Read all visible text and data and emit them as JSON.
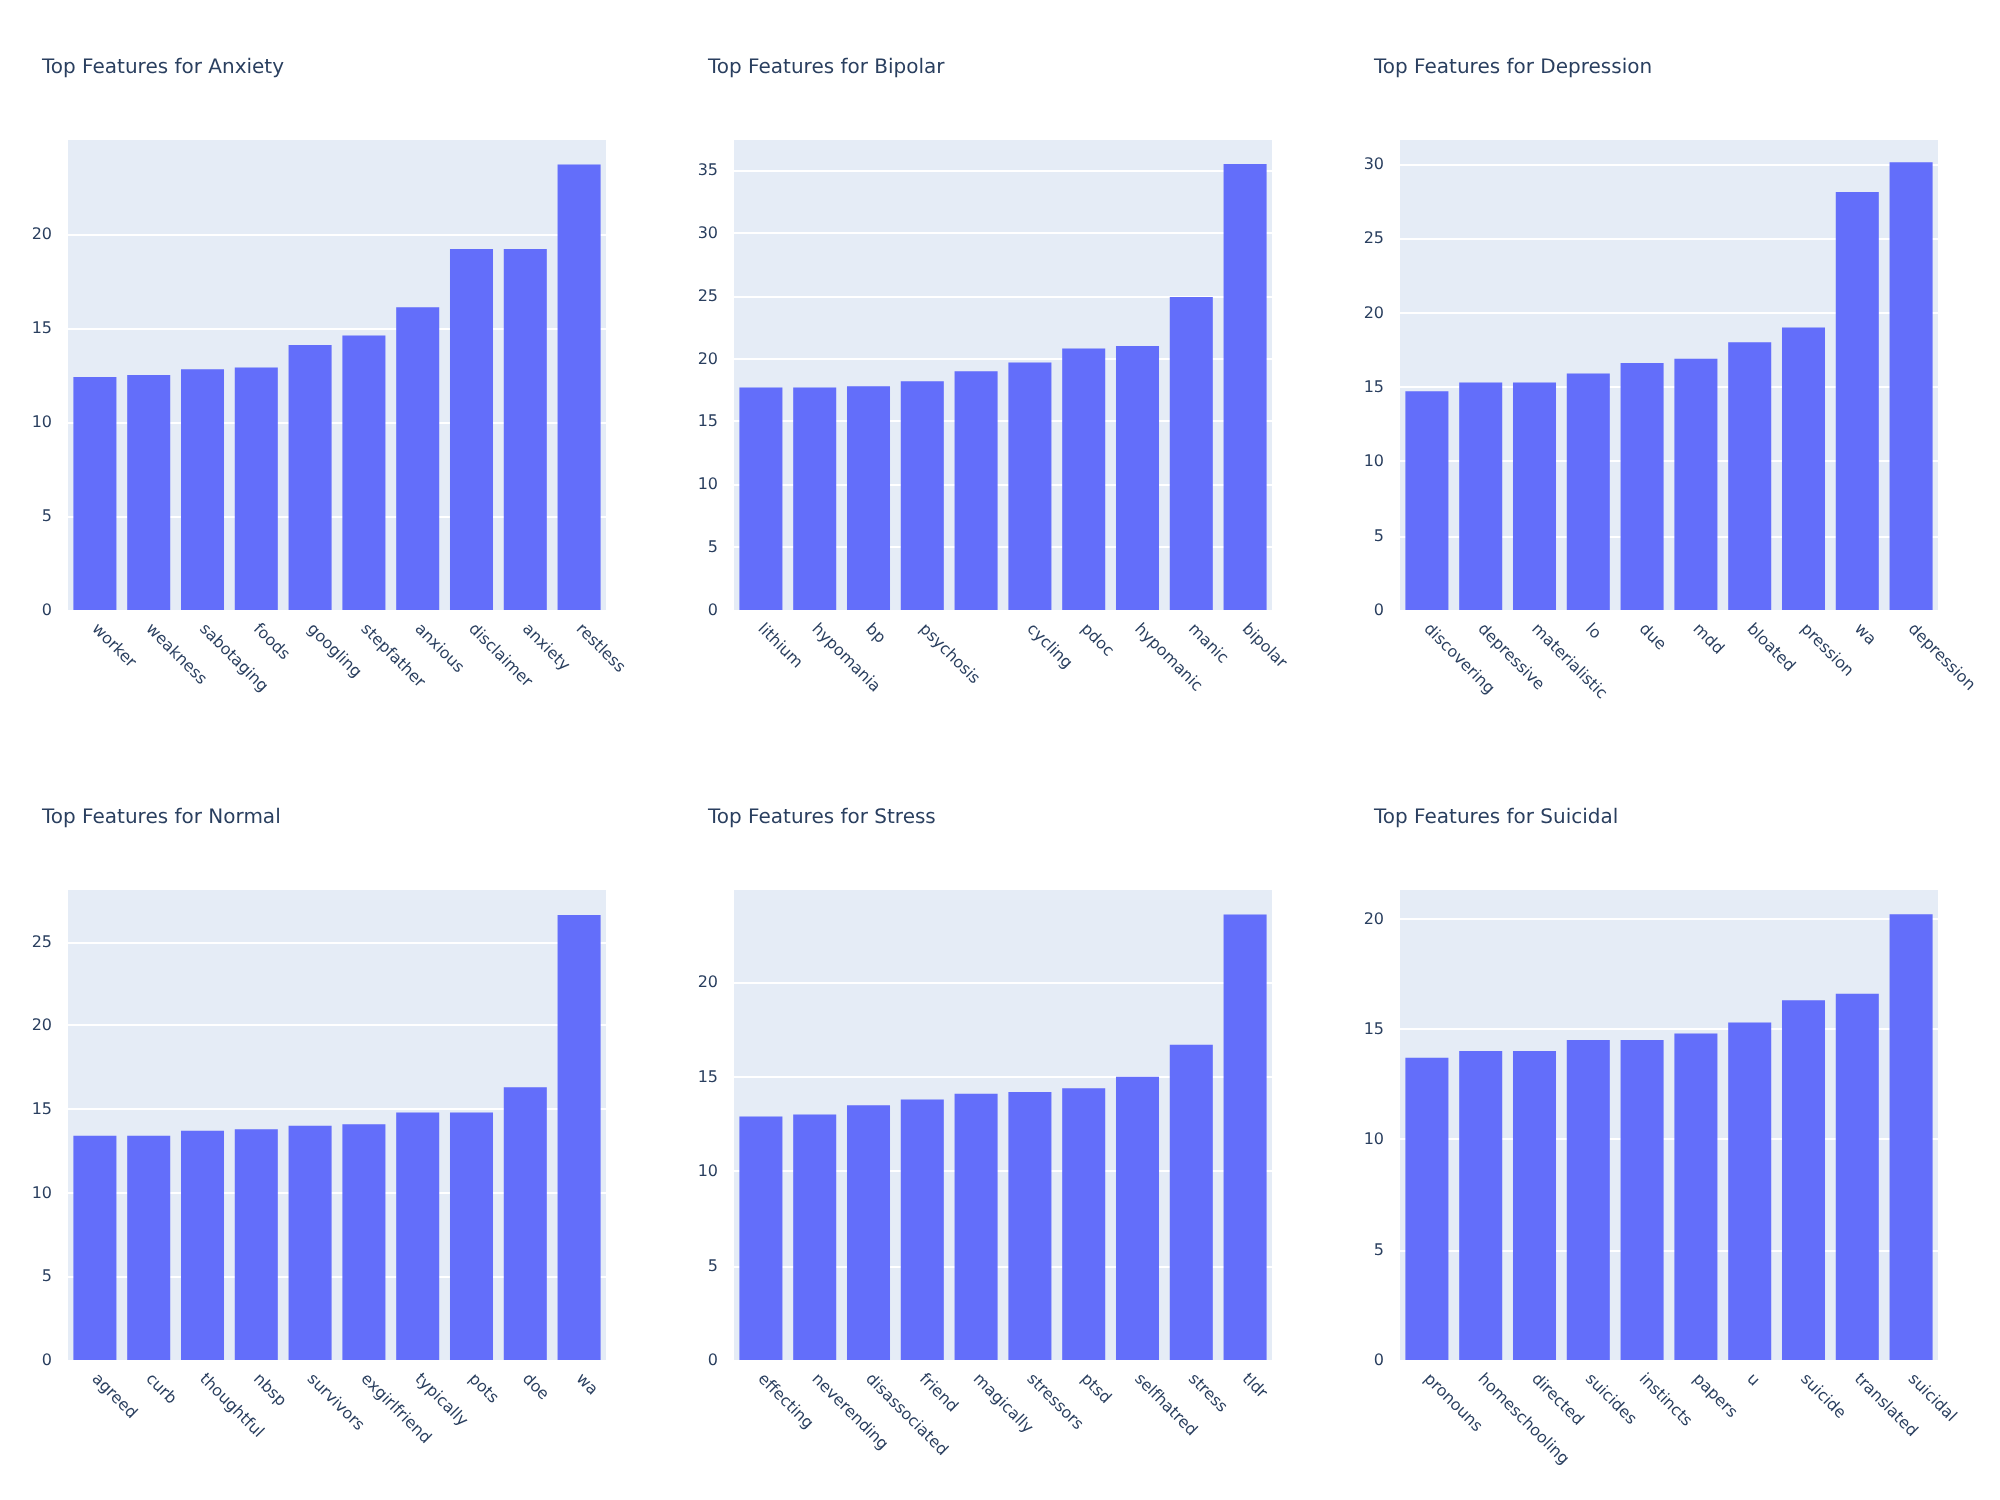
{
  "chart_data": [
    {
      "type": "bar",
      "title": "Top Features for Anxiety",
      "categories": [
        "worker",
        "weakness",
        "sabotaging",
        "foods",
        "googling",
        "stepfather",
        "anxious",
        "disclaimer",
        "anxiety",
        "restless"
      ],
      "values": [
        12.4,
        12.5,
        12.8,
        12.9,
        14.1,
        14.6,
        16.1,
        19.2,
        19.2,
        23.7
      ],
      "color": "#636efa",
      "ylim": [
        0,
        25
      ],
      "yticks": [
        0,
        5,
        10,
        15,
        20
      ],
      "grid": "y"
    },
    {
      "type": "bar",
      "title": "Top Features for Bipolar",
      "categories": [
        "lithium",
        "hypomania",
        "bp",
        "psychosis",
        null,
        "cycling",
        "pdoc",
        "hypomanic",
        "manic",
        "bipolar"
      ],
      "values": [
        17.7,
        17.7,
        17.8,
        18.2,
        19.0,
        19.7,
        20.8,
        21.0,
        24.9,
        35.5
      ],
      "color": "#636efa",
      "ylim": [
        0,
        37.4
      ],
      "yticks": [
        0,
        5,
        10,
        15,
        20,
        25,
        30,
        35
      ],
      "grid": "y"
    },
    {
      "type": "bar",
      "title": "Top Features for Depression",
      "categories": [
        "discovering",
        "depressive",
        "materialistic",
        "lo",
        "due",
        "mdd",
        "bloated",
        "pression",
        "wa",
        "depression"
      ],
      "values": [
        14.7,
        15.3,
        15.3,
        15.9,
        16.6,
        16.9,
        18.0,
        19.0,
        28.1,
        30.1
      ],
      "color": "#636efa",
      "ylim": [
        0,
        31.6
      ],
      "yticks": [
        0,
        5,
        10,
        15,
        20,
        25,
        30
      ],
      "grid": "y"
    },
    {
      "type": "bar",
      "title": "Top Features for Normal",
      "categories": [
        "agreed",
        "curb",
        "thoughtful",
        "nbsp",
        "survivors",
        "exgirlfriend",
        "typically",
        "pots",
        "doe",
        "wa"
      ],
      "values": [
        13.4,
        13.4,
        13.7,
        13.8,
        14.0,
        14.1,
        14.8,
        14.8,
        16.3,
        26.6
      ],
      "color": "#636efa",
      "ylim": [
        0,
        28.1
      ],
      "yticks": [
        0,
        5,
        10,
        15,
        20,
        25
      ],
      "grid": "y"
    },
    {
      "type": "bar",
      "title": "Top Features for Stress",
      "categories": [
        "effecting",
        "neverending",
        "disassociated",
        "friend",
        "magically",
        "stressors",
        "ptsd",
        "selfhatred",
        "stress",
        "tldr"
      ],
      "values": [
        12.9,
        13.0,
        13.5,
        13.8,
        14.1,
        14.2,
        14.4,
        15.0,
        16.7,
        23.6
      ],
      "color": "#636efa",
      "ylim": [
        0,
        24.9
      ],
      "yticks": [
        0,
        5,
        10,
        15,
        20
      ],
      "grid": "y"
    },
    {
      "type": "bar",
      "title": "Top Features for Suicidal",
      "categories": [
        "pronouns",
        "homeschooling",
        "directed",
        "suicides",
        "instincts",
        "papers",
        "u",
        "suicide",
        "translated",
        "suicidal"
      ],
      "values": [
        13.7,
        14.0,
        14.0,
        14.5,
        14.5,
        14.8,
        15.3,
        16.3,
        16.6,
        20.2
      ],
      "color": "#636efa",
      "ylim": [
        0,
        21.3
      ],
      "yticks": [
        0,
        5,
        10,
        15,
        20
      ],
      "grid": "y"
    }
  ]
}
